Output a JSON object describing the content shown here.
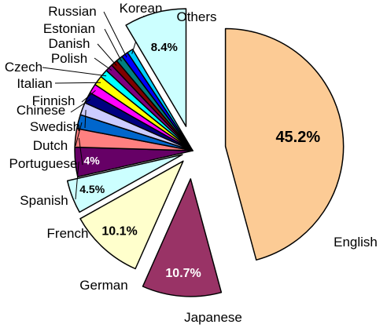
{
  "chart_data": {
    "type": "pie",
    "exploded": true,
    "legend": "none",
    "slices": [
      {
        "name": "English",
        "value": 45.2,
        "label": "45.2%",
        "color": "#FCCB95"
      },
      {
        "name": "Japanese",
        "value": 10.7,
        "label": "10.7%",
        "color": "#993366"
      },
      {
        "name": "German",
        "value": 10.1,
        "label": "10.1%",
        "color": "#FFFFCC"
      },
      {
        "name": "French",
        "value": 4.5,
        "label": "4.5%",
        "color": "#CCFFFF"
      },
      {
        "name": "Spanish",
        "value": 4.0,
        "label": "4%",
        "color": "#660066"
      },
      {
        "name": "Portuguese",
        "value": 2.5,
        "label": "",
        "color": "#FF8080"
      },
      {
        "name": "Dutch",
        "value": 1.9,
        "label": "",
        "color": "#0066CC"
      },
      {
        "name": "Swedish",
        "value": 1.7,
        "label": "",
        "color": "#CCCCFF"
      },
      {
        "name": "Chinese",
        "value": 1.5,
        "label": "",
        "color": "#000080"
      },
      {
        "name": "Finnish",
        "value": 1.3,
        "label": "",
        "color": "#FF00FF"
      },
      {
        "name": "Italian",
        "value": 1.3,
        "label": "",
        "color": "#FFFF00"
      },
      {
        "name": "Czech",
        "value": 1.1,
        "label": "",
        "color": "#00FFFF"
      },
      {
        "name": "Polish",
        "value": 1.0,
        "label": "",
        "color": "#800080"
      },
      {
        "name": "Danish",
        "value": 0.9,
        "label": "",
        "color": "#800000"
      },
      {
        "name": "Estonian",
        "value": 0.9,
        "label": "",
        "color": "#008080"
      },
      {
        "name": "Russian",
        "value": 0.9,
        "label": "",
        "color": "#0000FF"
      },
      {
        "name": "Korean",
        "value": 0.8,
        "label": "",
        "color": "#00CCFF"
      },
      {
        "name": "Others",
        "value": 8.4,
        "label": "8.4%",
        "color": "#CCFFFF"
      }
    ]
  }
}
